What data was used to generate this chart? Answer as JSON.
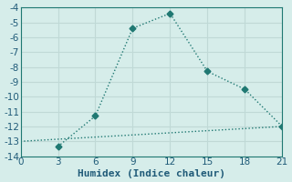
{
  "line1_x": [
    3,
    6,
    9,
    12,
    15,
    18,
    21
  ],
  "line1_y": [
    -13.35,
    -11.3,
    -5.4,
    -4.4,
    -8.3,
    -9.5,
    -12.0
  ],
  "line2_x": [
    0,
    21
  ],
  "line2_y": [
    -13.0,
    -12.0
  ],
  "line_color": "#1f7872",
  "bg_color": "#d6edea",
  "grid_color": "#c0d9d6",
  "xlabel": "Humidex (Indice chaleur)",
  "xlim": [
    0,
    21
  ],
  "ylim": [
    -14.0,
    -4.0
  ],
  "xticks": [
    0,
    3,
    6,
    9,
    12,
    15,
    18,
    21
  ],
  "yticks": [
    -4,
    -5,
    -6,
    -7,
    -8,
    -9,
    -10,
    -11,
    -12,
    -13,
    -14
  ],
  "font_color": "#1f5a78",
  "tick_font_size": 7.5,
  "xlabel_font_size": 8,
  "marker": "D",
  "marker_size": 3.5,
  "line1_style": ":",
  "line2_style": ":",
  "linewidth": 1.0
}
